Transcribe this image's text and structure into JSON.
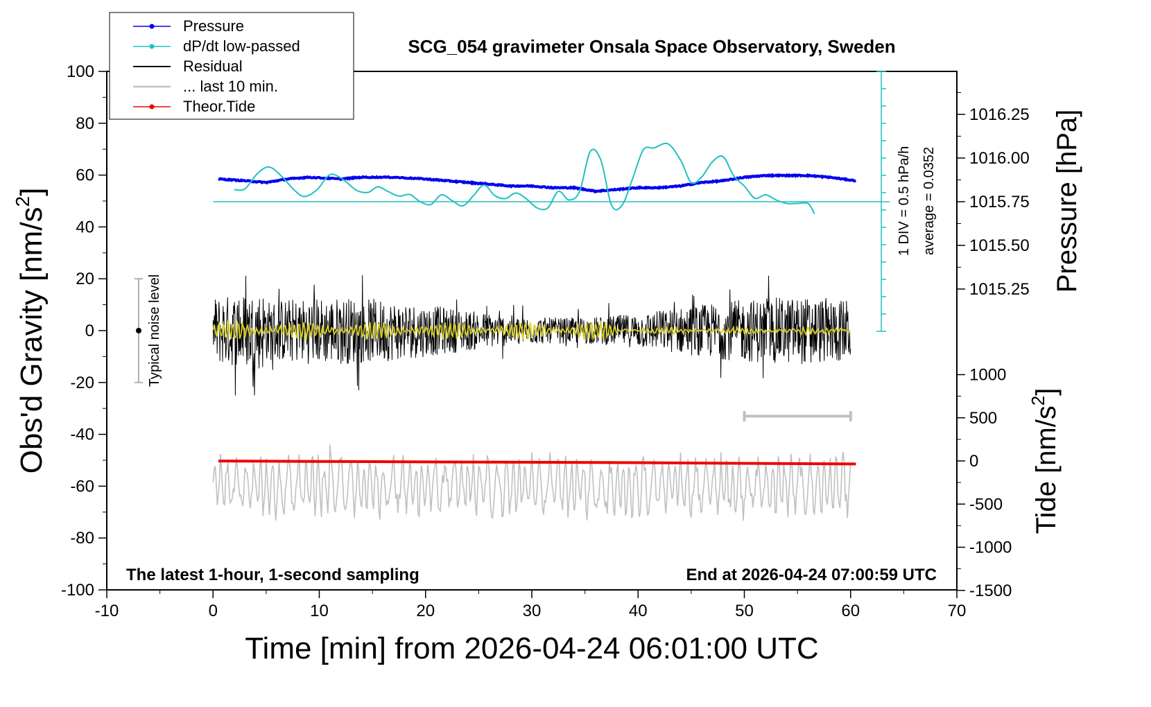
{
  "chart_data": {
    "type": "line",
    "title": "SCG_054 gravimeter Onsala Space Observatory, Sweden",
    "xlabel": "Time [min] from 2026-04-24 06:01:00 UTC",
    "xlim": [
      -10,
      70
    ],
    "xticks": [
      "-10",
      "0",
      "10",
      "20",
      "30",
      "40",
      "50",
      "60",
      "70"
    ],
    "y_left": {
      "label": "Obs'd Gravity [nm/s",
      "label_sup": "2",
      "label_end": "]",
      "lim": [
        -100,
        100
      ],
      "ticks": [
        "100",
        "80",
        "60",
        "40",
        "20",
        "0",
        "-20",
        "-40",
        "-60",
        "-80",
        "-100"
      ]
    },
    "y_right_pressure": {
      "label": "Pressure [hPa]",
      "ticks": [
        "1016.25",
        "1016.00",
        "1015.75",
        "1015.50",
        "1015.25"
      ],
      "tick_values": [
        1016.25,
        1016.0,
        1015.75,
        1015.5,
        1015.25
      ]
    },
    "y_right_tide": {
      "label": "Tide [nm/s",
      "label_sup": "2",
      "label_end": "]",
      "ticks": [
        "1000",
        "500",
        "0",
        "-500",
        "-1000",
        "-1500"
      ],
      "tick_values": [
        1000,
        500,
        0,
        -500,
        -1000,
        -1500
      ]
    },
    "legend": {
      "placement": "top-left",
      "entries": [
        "Pressure",
        "dP/dt low-passed",
        "Residual",
        "... last 10 min.",
        "Theor.Tide"
      ]
    },
    "series": [
      {
        "name": "Pressure",
        "color": "#0000ee",
        "units": "hPa",
        "x": [
          0.5,
          3,
          5,
          7,
          9,
          12,
          14,
          17,
          20,
          22,
          24,
          26,
          28,
          30,
          32,
          34,
          36,
          38,
          40,
          42,
          44,
          46,
          48,
          50,
          52,
          54,
          56,
          58,
          60.5
        ],
        "y": [
          1015.88,
          1015.87,
          1015.86,
          1015.88,
          1015.89,
          1015.88,
          1015.89,
          1015.89,
          1015.88,
          1015.87,
          1015.86,
          1015.85,
          1015.84,
          1015.84,
          1015.83,
          1015.83,
          1015.81,
          1015.82,
          1015.83,
          1015.83,
          1015.84,
          1015.86,
          1015.87,
          1015.89,
          1015.9,
          1015.9,
          1015.9,
          1015.89,
          1015.87
        ]
      },
      {
        "name": "dP/dt low-passed",
        "color": "#20c0c0",
        "units": "hPa/h",
        "x": [
          2,
          3,
          4.2,
          5.3,
          6.5,
          7.6,
          8.6,
          9.8,
          11,
          12.2,
          13.5,
          14.6,
          15.5,
          16.5,
          17.5,
          18.5,
          19.5,
          20.5,
          21.5,
          22.5,
          23.5,
          24.5,
          25.5,
          26.5,
          27.5,
          28.5,
          29.5,
          30.5,
          31.5,
          32.5,
          33.5,
          34.5,
          35.5,
          36.5,
          37.5,
          38.5,
          39.5,
          40.5,
          41.5,
          42.8,
          44,
          45,
          46,
          47,
          48,
          49,
          50,
          51,
          52,
          53,
          54,
          55,
          56,
          56.6
        ],
        "y": [
          0.35,
          0.37,
          0.82,
          1.0,
          0.72,
          0.35,
          0.15,
          0.35,
          0.78,
          0.65,
          0.33,
          0.27,
          0.43,
          0.29,
          0.16,
          0.21,
          0.0,
          -0.08,
          0.2,
          0.03,
          -0.12,
          0.17,
          0.48,
          0.18,
          0.09,
          0.25,
          0.08,
          -0.18,
          -0.18,
          0.3,
          0.05,
          0.3,
          1.45,
          1.2,
          -0.1,
          -0.1,
          0.68,
          1.5,
          1.55,
          1.67,
          1.2,
          0.55,
          0.72,
          1.15,
          1.3,
          0.75,
          0.45,
          0.1,
          0.2,
          0.05,
          -0.05,
          -0.05,
          -0.05,
          -0.35
        ]
      },
      {
        "name": "Residual",
        "color": "#000000",
        "units": "nm/s2",
        "x_range": [
          0,
          60
        ],
        "y_envelope": [
          -25,
          27
        ]
      },
      {
        "name": "... last 10 min.",
        "color": "#c0c0c0",
        "units": "nm/s2",
        "x_range": [
          0,
          60
        ],
        "y_range": [
          -78,
          -44
        ]
      },
      {
        "name": "Theor.Tide",
        "color": "#ee0000",
        "units": "nm/s2",
        "x": [
          0.5,
          10,
          20,
          30,
          40,
          50,
          60.5
        ],
        "y": [
          -1,
          -6,
          -11,
          -15,
          -20,
          -28,
          -35
        ]
      }
    ],
    "dpdt_axis": {
      "label1": "1 DIV = 0.5 hPa/h",
      "label2": "average = 0.0352"
    },
    "noise_indicator": {
      "label": "Typical noise level",
      "range": [
        -20,
        20
      ]
    },
    "annotations": {
      "bottom_left": "The latest 1-hour, 1-second sampling",
      "bottom_right": "End at 2026-04-24 07:00:59 UTC"
    }
  }
}
